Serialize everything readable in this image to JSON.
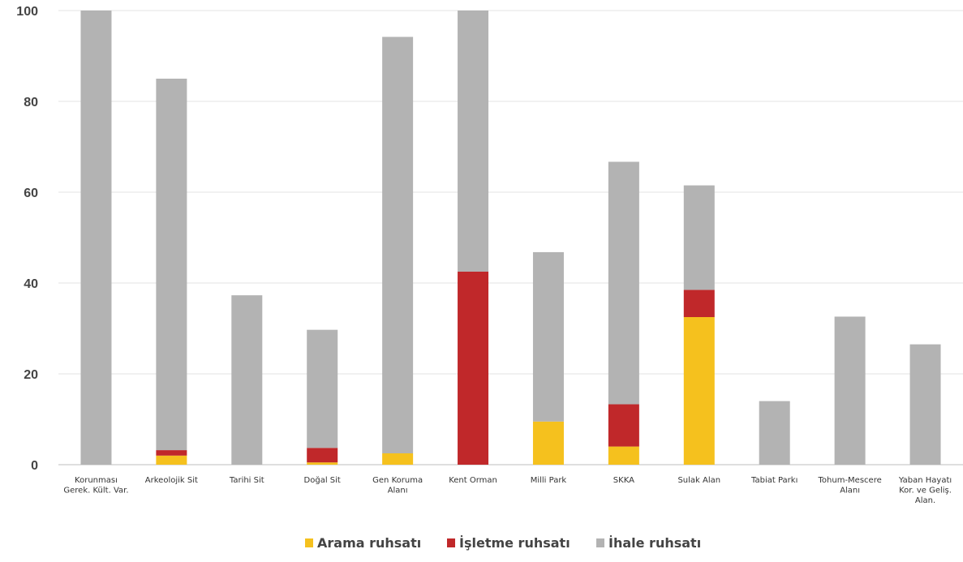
{
  "chart_data": {
    "type": "bar",
    "stacked": true,
    "categories": [
      [
        "Korunması",
        "Gerek. Kült. Var."
      ],
      [
        "Arkeolojik Sit"
      ],
      [
        "Tarihi Sit"
      ],
      [
        "Doğal Sit"
      ],
      [
        "Gen Koruma",
        "Alanı"
      ],
      [
        "Kent Orman"
      ],
      [
        "Milli Park"
      ],
      [
        "SKKA"
      ],
      [
        "Sulak Alan"
      ],
      [
        "Tabiat Parkı"
      ],
      [
        "Tohum-Mescere",
        "Alanı"
      ],
      [
        "Yaban Hayatı",
        "Kor. ve Geliş.",
        "Alan."
      ]
    ],
    "series": [
      {
        "name": "Arama ruhsatı",
        "color": "#F5C11E",
        "values": [
          0,
          2,
          0,
          0.5,
          2.5,
          0,
          9.5,
          4,
          32.5,
          0,
          0,
          0
        ]
      },
      {
        "name": "İşletme ruhsatı",
        "color": "#C0282A",
        "values": [
          0,
          1.2,
          0,
          3.2,
          0,
          42.5,
          0,
          9.3,
          6,
          0,
          0,
          0
        ]
      },
      {
        "name": "İhale ruhsatı",
        "color": "#B3B3B3",
        "values": [
          100,
          81.8,
          37.3,
          26,
          91.7,
          57.5,
          37.3,
          53.4,
          23,
          14,
          32.6,
          26.5
        ]
      }
    ],
    "ylim": [
      0,
      100
    ],
    "yticks": [
      "0",
      "20",
      "40",
      "60",
      "80",
      "100"
    ],
    "grid": true,
    "legend": "bottom-center",
    "title": "",
    "xlabel": "",
    "ylabel": ""
  }
}
